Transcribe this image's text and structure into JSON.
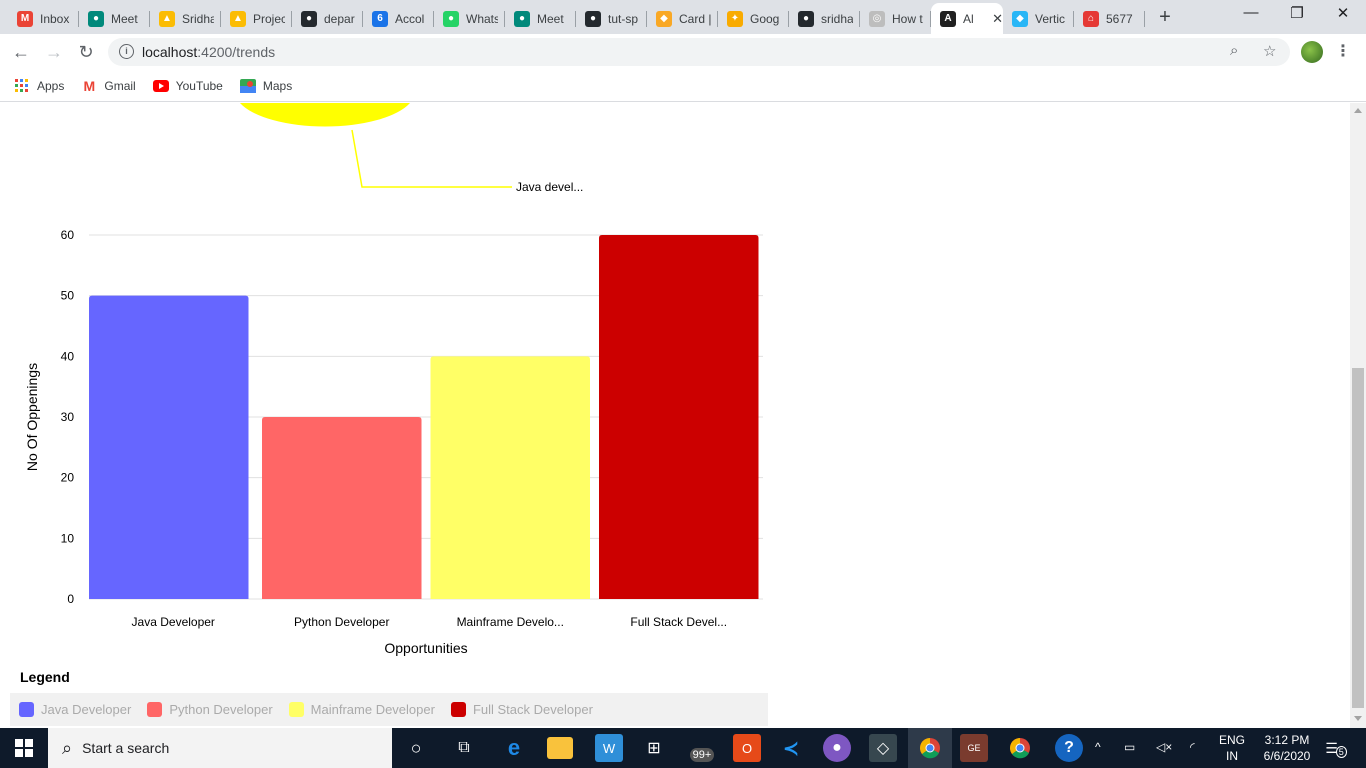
{
  "browser": {
    "tabs": [
      {
        "title": "Inbox",
        "icon": "gmail-icon",
        "color": "#ea4335",
        "glyph": "M"
      },
      {
        "title": "Meet",
        "icon": "meet-icon",
        "color": "#00897b",
        "glyph": "●"
      },
      {
        "title": "Sridha",
        "icon": "drive-icon",
        "color": "#fbbc04",
        "glyph": "▲"
      },
      {
        "title": "Projec",
        "icon": "drive-icon",
        "color": "#fbbc04",
        "glyph": "▲"
      },
      {
        "title": "depar",
        "icon": "github-icon",
        "color": "#24292e",
        "glyph": "●"
      },
      {
        "title": "Accol",
        "icon": "calendar-icon",
        "color": "#1a73e8",
        "glyph": "6"
      },
      {
        "title": "Whats",
        "icon": "whatsapp-icon",
        "color": "#25d366",
        "glyph": "●"
      },
      {
        "title": "Meet",
        "icon": "meet-icon",
        "color": "#00897b",
        "glyph": "●"
      },
      {
        "title": "tut-sp",
        "icon": "github-icon",
        "color": "#24292e",
        "glyph": "●"
      },
      {
        "title": "Card |",
        "icon": "shield-icon",
        "color": "#f9a825",
        "glyph": "◆"
      },
      {
        "title": "Goog",
        "icon": "bulb-icon",
        "color": "#f9ab00",
        "glyph": "✦"
      },
      {
        "title": "sridha",
        "icon": "github-icon",
        "color": "#24292e",
        "glyph": "●"
      },
      {
        "title": "How t",
        "icon": "page-icon",
        "color": "#bdbdbd",
        "glyph": "◎"
      },
      {
        "title": "Al",
        "icon": "angular-icon",
        "color": "#212121",
        "glyph": "A",
        "active": true
      },
      {
        "title": "Vertic",
        "icon": "diamond-icon",
        "color": "#29b6f6",
        "glyph": "◆"
      },
      {
        "title": "5677",
        "icon": "building-icon",
        "color": "#e53935",
        "glyph": "⌂"
      }
    ],
    "url_host": "localhost",
    "url_path": ":4200/trends",
    "bookmarks": [
      {
        "label": "Apps",
        "icon": "apps-grid-icon"
      },
      {
        "label": "Gmail",
        "icon": "gmail-icon"
      },
      {
        "label": "YouTube",
        "icon": "youtube-icon"
      },
      {
        "label": "Maps",
        "icon": "maps-icon"
      }
    ]
  },
  "pie_label": "Java devel...",
  "chart_data": {
    "type": "bar",
    "categories": [
      "Java Developer",
      "Python Developer",
      "Mainframe Develo...",
      "Full Stack Devel..."
    ],
    "values": [
      50,
      30,
      40,
      60
    ],
    "colors": [
      "#6666ff",
      "#ff6666",
      "#ffff66",
      "#cc0000"
    ],
    "xlabel": "Opportunities",
    "ylabel": "No Of Oppenings",
    "ylim": [
      0,
      60
    ],
    "yticks": [
      0,
      10,
      20,
      30,
      40,
      50,
      60
    ],
    "grid": true
  },
  "legend": {
    "title": "Legend",
    "items": [
      {
        "label": "Java Developer",
        "color": "#6666ff"
      },
      {
        "label": "Python Developer",
        "color": "#ff6666"
      },
      {
        "label": "Mainframe Developer",
        "color": "#ffff66"
      },
      {
        "label": "Full Stack Developer",
        "color": "#cc0000"
      }
    ]
  },
  "taskbar": {
    "search_placeholder": "Start a search",
    "lang_line1": "ENG",
    "lang_line2": "IN",
    "time": "3:12 PM",
    "date": "6/6/2020",
    "notification_count": "5",
    "badge_99": "99+"
  }
}
